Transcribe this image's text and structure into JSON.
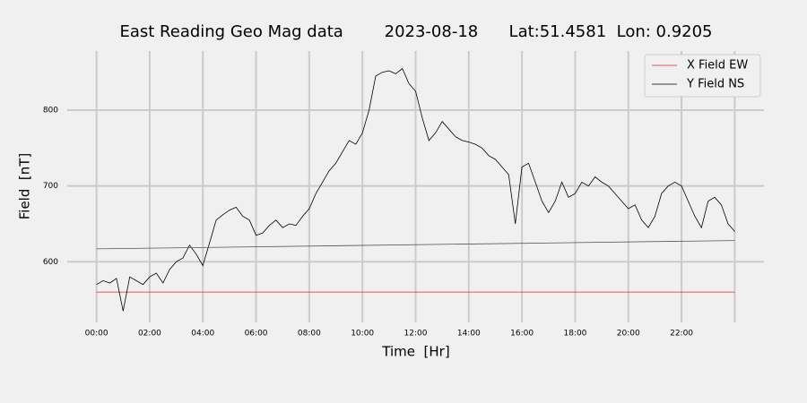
{
  "chart_data": {
    "type": "line",
    "title": "East Reading Geo Mag data        2023-08-18      Lat:51.4581  Lon: 0.9205",
    "x_label": "Time  [Hr]",
    "y_label": "Field  [nT]",
    "xlim": [
      -1.1,
      25.1
    ],
    "ylim": [
      520,
      878
    ],
    "xticks": [
      {
        "value": 0,
        "label": "00:00"
      },
      {
        "value": 2,
        "label": "02:00"
      },
      {
        "value": 4,
        "label": "04:00"
      },
      {
        "value": 6,
        "label": "06:00"
      },
      {
        "value": 8,
        "label": "08:00"
      },
      {
        "value": 10,
        "label": "10:00"
      },
      {
        "value": 12,
        "label": "12:00"
      },
      {
        "value": 14,
        "label": "14:00"
      },
      {
        "value": 16,
        "label": "16:00"
      },
      {
        "value": 18,
        "label": "18:00"
      },
      {
        "value": 20,
        "label": "20:00"
      },
      {
        "value": 22,
        "label": "22:00"
      },
      {
        "value": 24,
        "label": null
      }
    ],
    "yticks": [
      600,
      700,
      800
    ],
    "grid": true,
    "legend": "upper right",
    "series": [
      {
        "name": "X Field EW",
        "color": "#d62728",
        "x": [
          0,
          24
        ],
        "values": [
          560,
          560
        ]
      },
      {
        "name": "Y Field NS",
        "color": "#000000",
        "x": [
          0,
          0.25,
          0.5,
          0.75,
          1,
          1.25,
          1.5,
          1.75,
          2,
          2.25,
          2.5,
          2.75,
          3,
          3.25,
          3.5,
          3.75,
          4,
          4.25,
          4.5,
          4.75,
          5,
          5.25,
          5.5,
          5.75,
          6,
          6.25,
          6.5,
          6.75,
          7,
          7.25,
          7.5,
          7.75,
          8,
          8.25,
          8.5,
          8.75,
          9,
          9.25,
          9.5,
          9.75,
          10,
          10.25,
          10.5,
          10.75,
          11,
          11.25,
          11.5,
          11.75,
          12,
          12.25,
          12.5,
          12.75,
          13,
          13.25,
          13.5,
          13.75,
          14,
          14.25,
          14.5,
          14.75,
          15,
          15.25,
          15.5,
          15.75,
          16,
          16.25,
          16.5,
          16.75,
          17,
          17.25,
          17.5,
          17.75,
          18,
          18.25,
          18.5,
          18.75,
          19,
          19.25,
          19.5,
          19.75,
          20,
          20.25,
          20.5,
          20.75,
          21,
          21.25,
          21.5,
          21.75,
          22,
          22.25,
          22.5,
          22.75,
          23,
          23.25,
          23.5,
          23.75,
          24
        ],
        "values": [
          570,
          575,
          572,
          578,
          535,
          580,
          575,
          570,
          580,
          585,
          572,
          590,
          600,
          605,
          622,
          610,
          595,
          625,
          655,
          662,
          668,
          672,
          660,
          655,
          635,
          638,
          648,
          655,
          645,
          650,
          648,
          660,
          670,
          690,
          705,
          720,
          730,
          745,
          760,
          755,
          770,
          800,
          845,
          850,
          852,
          848,
          855,
          835,
          825,
          790,
          760,
          770,
          785,
          775,
          765,
          760,
          758,
          755,
          750,
          740,
          735,
          725,
          715,
          650,
          725,
          730,
          705,
          680,
          665,
          680,
          705,
          685,
          690,
          705,
          700,
          712,
          705,
          700,
          690,
          680,
          670,
          675,
          655,
          645,
          660,
          690,
          700,
          705,
          700,
          680,
          660,
          645,
          680,
          685,
          675,
          650,
          640
        ]
      },
      {
        "color": "#555555",
        "x": [
          0,
          24
        ],
        "values": [
          617,
          628
        ]
      }
    ]
  }
}
